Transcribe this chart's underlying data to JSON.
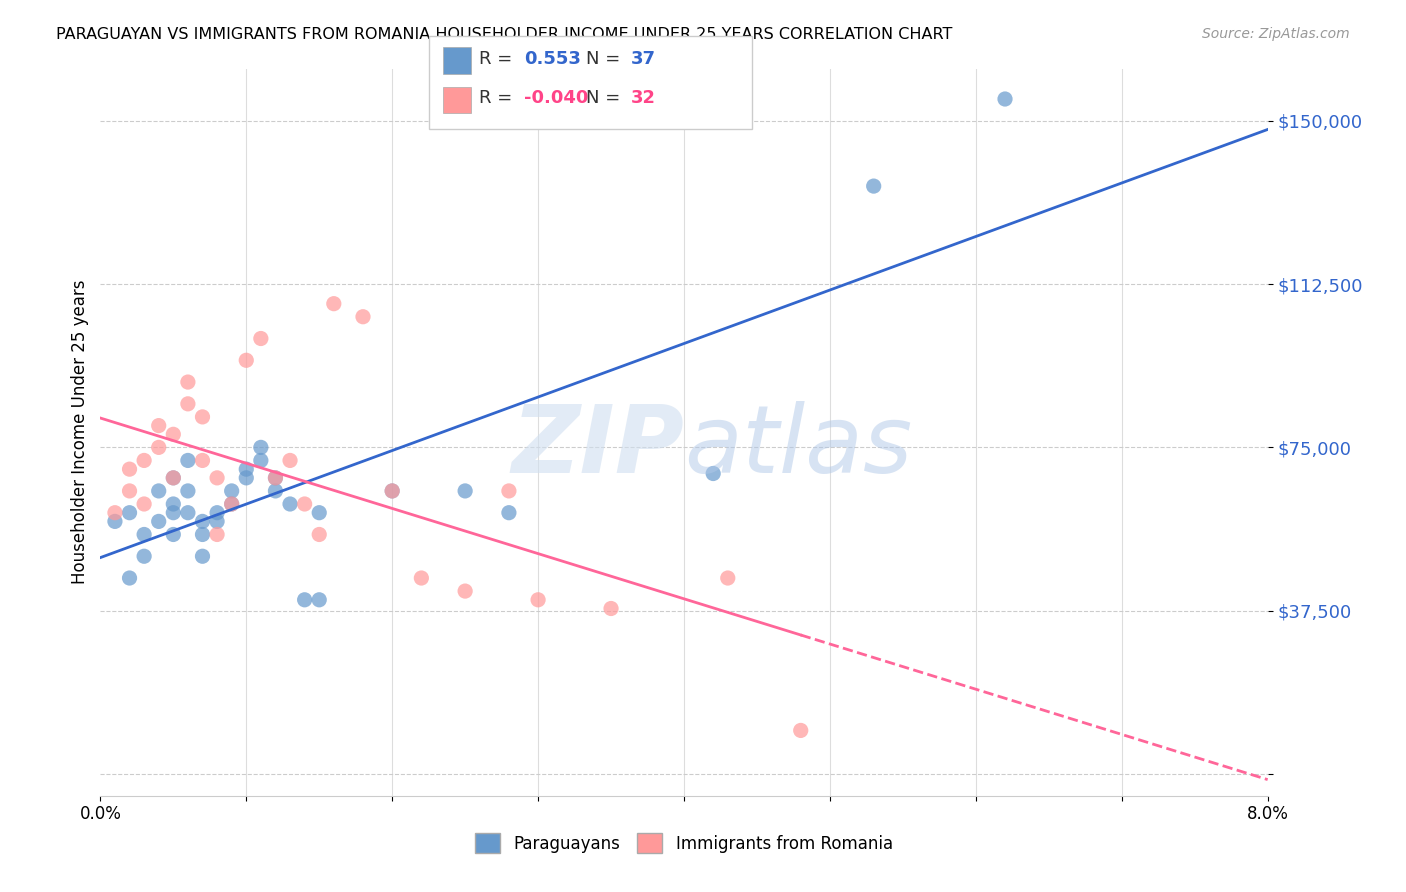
{
  "title": "PARAGUAYAN VS IMMIGRANTS FROM ROMANIA HOUSEHOLDER INCOME UNDER 25 YEARS CORRELATION CHART",
  "source": "Source: ZipAtlas.com",
  "ylabel": "Householder Income Under 25 years",
  "xlim": [
    0.0,
    0.08
  ],
  "ylim": [
    -5000,
    162000
  ],
  "yticks": [
    0,
    37500,
    75000,
    112500,
    150000
  ],
  "ytick_labels": [
    "",
    "$37,500",
    "$75,000",
    "$112,500",
    "$150,000"
  ],
  "xticks": [
    0.0,
    0.01,
    0.02,
    0.03,
    0.04,
    0.05,
    0.06,
    0.07,
    0.08
  ],
  "blue_R": 0.553,
  "blue_N": 37,
  "pink_R": -0.04,
  "pink_N": 32,
  "blue_color": "#6699CC",
  "pink_color": "#FF9999",
  "blue_line_color": "#3366CC",
  "pink_line_color": "#FF6699",
  "paraguayan_x": [
    0.001,
    0.002,
    0.002,
    0.003,
    0.003,
    0.004,
    0.004,
    0.005,
    0.005,
    0.005,
    0.005,
    0.006,
    0.006,
    0.006,
    0.007,
    0.007,
    0.007,
    0.008,
    0.008,
    0.009,
    0.009,
    0.01,
    0.01,
    0.011,
    0.011,
    0.012,
    0.012,
    0.013,
    0.014,
    0.015,
    0.015,
    0.02,
    0.025,
    0.028,
    0.042,
    0.053,
    0.062
  ],
  "paraguayan_y": [
    58000,
    60000,
    45000,
    55000,
    50000,
    65000,
    58000,
    60000,
    55000,
    62000,
    68000,
    72000,
    65000,
    60000,
    58000,
    55000,
    50000,
    60000,
    58000,
    65000,
    62000,
    70000,
    68000,
    75000,
    72000,
    68000,
    65000,
    62000,
    40000,
    40000,
    60000,
    65000,
    65000,
    60000,
    69000,
    135000,
    155000
  ],
  "romania_x": [
    0.001,
    0.002,
    0.002,
    0.003,
    0.003,
    0.004,
    0.004,
    0.005,
    0.005,
    0.006,
    0.006,
    0.007,
    0.007,
    0.008,
    0.008,
    0.009,
    0.01,
    0.011,
    0.012,
    0.013,
    0.014,
    0.015,
    0.016,
    0.018,
    0.02,
    0.022,
    0.025,
    0.028,
    0.03,
    0.035,
    0.043,
    0.048
  ],
  "romania_y": [
    60000,
    65000,
    70000,
    62000,
    72000,
    75000,
    80000,
    68000,
    78000,
    85000,
    90000,
    82000,
    72000,
    68000,
    55000,
    62000,
    95000,
    100000,
    68000,
    72000,
    62000,
    55000,
    108000,
    105000,
    65000,
    45000,
    42000,
    65000,
    40000,
    38000,
    45000,
    10000
  ]
}
